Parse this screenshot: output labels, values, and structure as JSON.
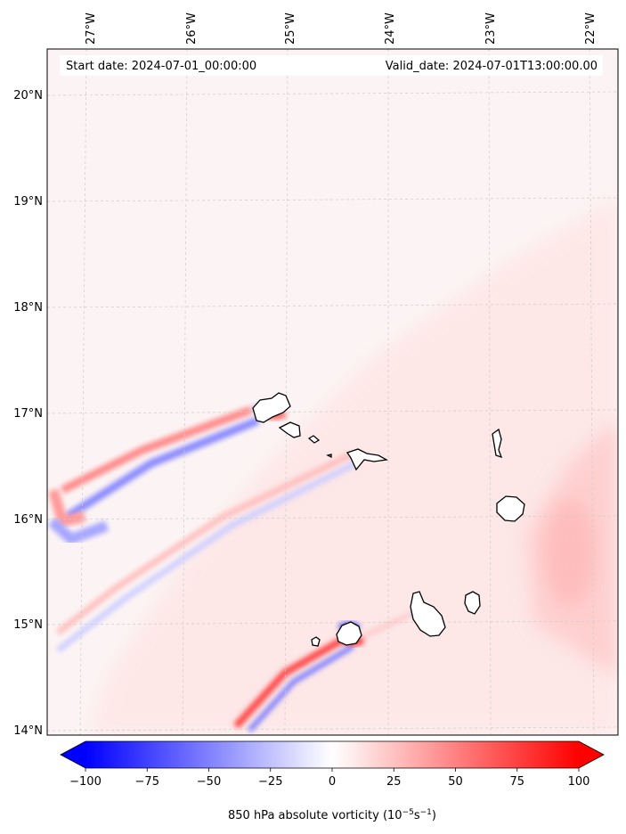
{
  "header": {
    "start_date": "Start date: 2024-07-01_00:00:00",
    "valid_date": "Valid_date: 2024-07-01T13:00:00.00"
  },
  "longitude_labels": [
    "27°W",
    "26°W",
    "25°W",
    "24°W",
    "23°W",
    "22°W"
  ],
  "latitude_labels": [
    "20°N",
    "19°N",
    "18°N",
    "17°N",
    "16°N",
    "15°N",
    "14°N"
  ],
  "colorbar": {
    "title_prefix": "850 hPa absolute vorticity (10",
    "title_exp1": "−5",
    "title_mid": "s",
    "title_exp2": "−1",
    "title_suffix": ")",
    "ticks": [
      "−100",
      "−75",
      "−50",
      "−25",
      "0",
      "25",
      "50",
      "75",
      "100"
    ],
    "range": [
      -100,
      100
    ],
    "negative_color": "#0000ff",
    "positive_color": "#ff0000"
  },
  "colors": {
    "background_field": "#fcf4f4",
    "land_fill": "#ffffff",
    "coastline": "#000000",
    "gridline": "#cccccc"
  }
}
